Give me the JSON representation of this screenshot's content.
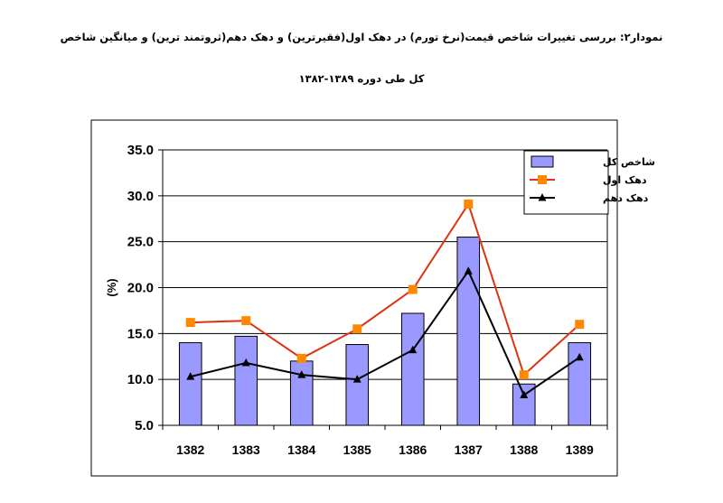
{
  "header": {
    "title_line1": "نمودار۲: بررسی تغییرات شاخص قیمت(نرخ تورم) در دهک اول(فقیرترین) و دهک دهم(ثروتمند ترین) و میانگین شاخص",
    "title_line2": "کل طی دوره ۱۳۸۹-۱۳۸۲"
  },
  "chart_data": {
    "type": "bar",
    "categories": [
      "1382",
      "1383",
      "1384",
      "1385",
      "1386",
      "1387",
      "1388",
      "1389"
    ],
    "ylabel": "(%)",
    "ylim": [
      5,
      35
    ],
    "yticks": [
      "35.0",
      "30.0",
      "25.0",
      "20.0",
      "15.0",
      "10.0",
      "5.0"
    ],
    "grid": true,
    "legend_position": "top-right",
    "series": [
      {
        "name": "شاخص کل",
        "kind": "bar",
        "color": "#9999ff",
        "values": [
          14.0,
          14.7,
          12.0,
          13.8,
          17.2,
          25.5,
          9.5,
          14.0
        ]
      },
      {
        "name": "دهک اول",
        "kind": "line",
        "marker": "square",
        "color": "#dd3311",
        "marker_color": "#ff8800",
        "values": [
          16.2,
          16.4,
          12.3,
          15.5,
          19.8,
          29.1,
          10.5,
          16.0
        ]
      },
      {
        "name": "دهک دهم",
        "kind": "line",
        "marker": "triangle",
        "color": "#000000",
        "values": [
          10.3,
          11.8,
          10.5,
          10.0,
          13.2,
          21.8,
          8.3,
          12.4
        ]
      }
    ]
  }
}
